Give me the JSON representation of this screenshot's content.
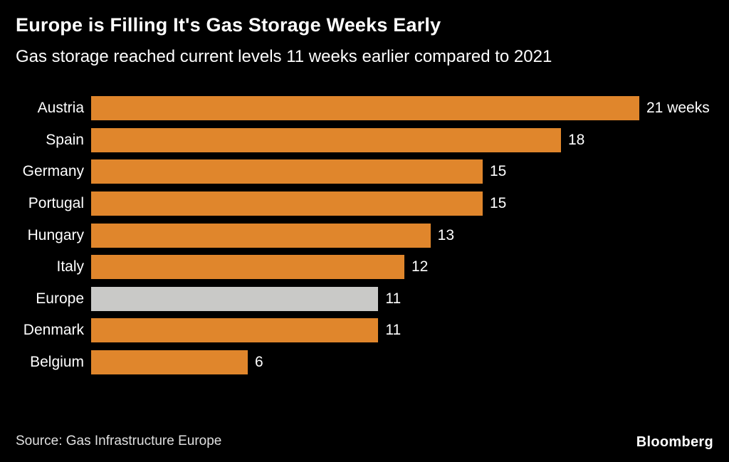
{
  "chart_data": {
    "type": "bar",
    "orientation": "horizontal",
    "title": "Europe is Filling It's Gas Storage Weeks Early",
    "subtitle": "Gas storage reached current levels 11 weeks earlier compared to 2021",
    "categories": [
      "Austria",
      "Spain",
      "Germany",
      "Portugal",
      "Hungary",
      "Italy",
      "Europe",
      "Denmark",
      "Belgium"
    ],
    "values": [
      21,
      18,
      15,
      15,
      13,
      12,
      11,
      11,
      6
    ],
    "value_labels": [
      "21 weeks",
      "18",
      "15",
      "15",
      "13",
      "12",
      "11",
      "11",
      "6"
    ],
    "unit": "weeks",
    "xlim": [
      0,
      21
    ],
    "grid": false,
    "legend": "none",
    "bar_color": "#E0862C",
    "highlight_category": "Europe",
    "highlight_color": "#C9C9C7",
    "background_color": "#000000",
    "text_color": "#FFFFFF"
  },
  "footer": {
    "source": "Source: Gas Infrastructure Europe",
    "brand": "Bloomberg"
  }
}
